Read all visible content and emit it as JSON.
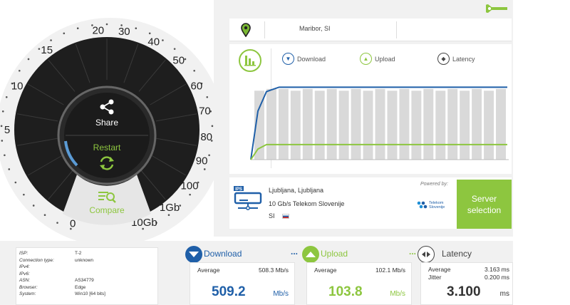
{
  "gauge": {
    "ticks": [
      {
        "label": "0",
        "angle": 200
      },
      {
        "label": "5",
        "angle": 270
      },
      {
        "label": "10",
        "angle": 296
      },
      {
        "label": "15",
        "angle": 323
      },
      {
        "label": "20",
        "angle": 355
      },
      {
        "label": "30",
        "angle": 10
      },
      {
        "label": "40",
        "angle": 28
      },
      {
        "label": "50",
        "angle": 46
      },
      {
        "label": "60",
        "angle": 64
      },
      {
        "label": "70",
        "angle": 79
      },
      {
        "label": "80",
        "angle": 94
      },
      {
        "label": "90",
        "angle": 108
      },
      {
        "label": "100",
        "angle": 124
      },
      {
        "label": "1Gb",
        "angle": 141
      },
      {
        "label": "10Gb",
        "angle": 158
      }
    ],
    "share_label": "Share",
    "restart_label": "Restart",
    "compare_label": "Compare"
  },
  "location": {
    "city": "Maribor, SI"
  },
  "chart": {
    "legend": {
      "download": "Download",
      "upload": "Upload",
      "latency": "Latency"
    }
  },
  "chart_data": {
    "type": "bar",
    "bars": [
      0.78,
      0.8,
      0.8,
      0.78,
      0.8,
      0.78,
      0.8,
      0.78,
      0.8,
      0.78,
      0.8,
      0.78,
      0.8,
      0.78,
      0.8,
      0.78,
      0.8,
      0.78,
      0.8,
      0.78,
      0.8
    ],
    "download_line": [
      0.0,
      0.55,
      0.77,
      0.82,
      0.82,
      0.82,
      0.82,
      0.82,
      0.82,
      0.82,
      0.82,
      0.82,
      0.82,
      0.82,
      0.82,
      0.82,
      0.82,
      0.82,
      0.82,
      0.82,
      0.82,
      0.82
    ],
    "upload_line": [
      0.0,
      0.12,
      0.17,
      0.17,
      0.17,
      0.17,
      0.17,
      0.17,
      0.17,
      0.17,
      0.17,
      0.17,
      0.17,
      0.17,
      0.17,
      0.17,
      0.17,
      0.17,
      0.17,
      0.17,
      0.17,
      0.17
    ],
    "colors": {
      "bar": "#d9d9d9",
      "download": "#1f5fa8",
      "upload": "#8dc63f"
    }
  },
  "server": {
    "badge": "IPS",
    "location": "Ljubljana, Ljubljana",
    "provider": "10 Gb/s Telekom Slovenije",
    "country": "SI",
    "powered_by": "Powered by:",
    "sponsor_name": "Telekom Slovenije",
    "button_label": "Server selection"
  },
  "isp": {
    "rows": [
      {
        "key": "ISP:",
        "value": "T-2"
      },
      {
        "key": "Connection type:",
        "value": "unknown"
      },
      {
        "key": "IPv4:",
        "value": ""
      },
      {
        "key": "IPv6:",
        "value": ""
      },
      {
        "key": "ASN:",
        "value": "AS34779"
      },
      {
        "key": "Browser:",
        "value": "Edge"
      },
      {
        "key": "System:",
        "value": "Win10 [64 bits]"
      }
    ]
  },
  "results": {
    "download": {
      "title": "Download",
      "dots": "...",
      "avg_label": "Average",
      "avg_value": "508.3 Mb/s",
      "value": "509.2",
      "unit": "Mb/s"
    },
    "upload": {
      "title": "Upload",
      "dots": "...",
      "avg_label": "Average",
      "avg_value": "102.1 Mb/s",
      "value": "103.8",
      "unit": "Mb/s"
    },
    "latency": {
      "title": "Latency",
      "avg_label": "Average",
      "avg_value": "3.163 ms",
      "jitter_label": "Jitter",
      "jitter_value": "0.200 ms",
      "value": "3.100",
      "unit": "ms"
    }
  },
  "colors": {
    "green": "#8dc63f",
    "blue": "#1f5fa8",
    "dark": "#222222"
  }
}
